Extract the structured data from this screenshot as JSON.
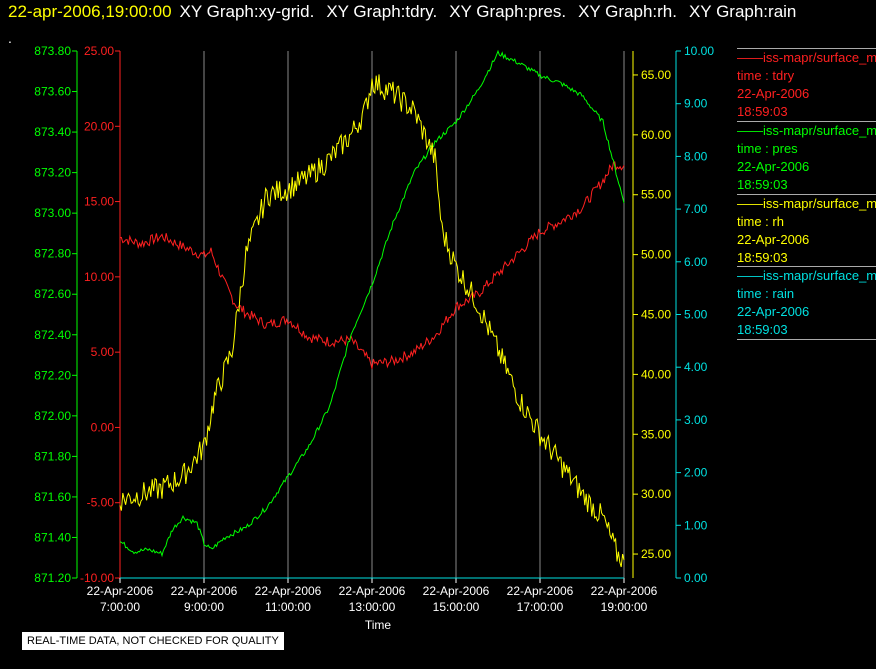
{
  "header": {
    "timestamp": "22-apr-2006,19:00:00",
    "graph_titles": [
      "XY Graph:xy-grid.",
      "XY Graph:tdry.",
      "XY Graph:pres.",
      "XY Graph:rh.",
      "XY Graph:rain"
    ],
    "dot": "."
  },
  "quality_notice": "REAL-TIME DATA, NOT CHECKED FOR QUALITY",
  "legend": [
    {
      "name": "——iss-mapr/surface_m",
      "var": "time : tdry",
      "date": "22-Apr-2006",
      "time": "18:59:03",
      "color": "#ff2020"
    },
    {
      "name": "——iss-mapr/surface_m",
      "var": "time : pres",
      "date": "22-Apr-2006",
      "time": "18:59:03",
      "color": "#00ff00"
    },
    {
      "name": "——iss-mapr/surface_m",
      "var": "time : rh",
      "date": "22-Apr-2006",
      "time": "18:59:03",
      "color": "#ffff00"
    },
    {
      "name": "——iss-mapr/surface_m",
      "var": "time : rain",
      "date": "22-Apr-2006",
      "time": "18:59:03",
      "color": "#00e0e0"
    }
  ],
  "chart_data": {
    "type": "line",
    "xlabel": "Time",
    "x_ticks": [
      {
        "date": "22-Apr-2006",
        "time": "7:00:00"
      },
      {
        "date": "22-Apr-2006",
        "time": "9:00:00"
      },
      {
        "date": "22-Apr-2006",
        "time": "11:00:00"
      },
      {
        "date": "22-Apr-2006",
        "time": "13:00:00"
      },
      {
        "date": "22-Apr-2006",
        "time": "15:00:00"
      },
      {
        "date": "22-Apr-2006",
        "time": "17:00:00"
      },
      {
        "date": "22-Apr-2006",
        "time": "19:00:00"
      }
    ],
    "xlim": [
      "22-Apr-2006 07:00",
      "22-Apr-2006 19:00"
    ],
    "grid": "vertical",
    "axes": [
      {
        "id": "tdry",
        "color": "#ff2020",
        "ylim": [
          -10,
          25
        ],
        "ticks": [
          "-10.00",
          "-5.00",
          "0.00",
          "5.00",
          "10.00",
          "15.00",
          "20.00",
          "25.00"
        ]
      },
      {
        "id": "pres",
        "color": "#00ff00",
        "ylim": [
          871.2,
          873.8
        ],
        "ticks": [
          "871.20",
          "871.40",
          "871.60",
          "871.80",
          "872.00",
          "872.20",
          "872.40",
          "872.60",
          "872.80",
          "873.00",
          "873.20",
          "873.40",
          "873.60",
          "873.80"
        ]
      },
      {
        "id": "rh",
        "color": "#ffff00",
        "ylim": [
          23,
          67
        ],
        "ticks": [
          "25.00",
          "30.00",
          "35.00",
          "40.00",
          "45.00",
          "50.00",
          "55.00",
          "60.00",
          "65.00"
        ]
      },
      {
        "id": "rain",
        "color": "#00e0e0",
        "ylim": [
          0,
          10
        ],
        "ticks": [
          "0.00",
          "1.00",
          "2.00",
          "3.00",
          "4.00",
          "5.00",
          "6.00",
          "7.00",
          "8.00",
          "9.00",
          "10.00"
        ]
      }
    ],
    "series": [
      {
        "name": "time : tdry",
        "axis": "tdry",
        "color": "#ff2020",
        "x": [
          "07:00",
          "07:30",
          "08:00",
          "08:30",
          "09:00",
          "09:10",
          "09:30",
          "09:45",
          "10:00",
          "10:30",
          "11:00",
          "11:30",
          "12:00",
          "12:30",
          "13:00",
          "13:30",
          "14:00",
          "14:30",
          "15:00",
          "15:30",
          "16:00",
          "16:30",
          "17:00",
          "17:30",
          "18:00",
          "18:30",
          "18:45",
          "19:00"
        ],
        "y": [
          12.6,
          12.2,
          12.7,
          12.0,
          11.4,
          11.7,
          9.5,
          8.2,
          7.6,
          6.8,
          7.2,
          6.0,
          5.7,
          5.8,
          4.2,
          4.4,
          5.0,
          6.1,
          8.0,
          8.8,
          10.2,
          11.6,
          13.0,
          13.7,
          14.6,
          16.4,
          17.5,
          17.4
        ]
      },
      {
        "name": "time : pres",
        "axis": "pres",
        "color": "#00ff00",
        "x": [
          "07:00",
          "07:20",
          "07:40",
          "08:00",
          "08:15",
          "08:30",
          "08:50",
          "09:00",
          "09:10",
          "09:30",
          "10:00",
          "10:30",
          "11:00",
          "11:30",
          "12:00",
          "12:30",
          "13:00",
          "13:30",
          "14:00",
          "14:30",
          "15:00",
          "15:30",
          "16:00",
          "16:30",
          "17:00",
          "17:30",
          "18:00",
          "18:30",
          "18:45",
          "19:00"
        ],
        "y": [
          871.38,
          871.33,
          871.34,
          871.32,
          871.44,
          871.5,
          871.47,
          871.37,
          871.34,
          871.4,
          871.45,
          871.55,
          871.7,
          871.85,
          872.05,
          872.4,
          872.65,
          872.95,
          873.2,
          873.35,
          873.45,
          873.6,
          873.79,
          873.74,
          873.68,
          873.64,
          873.58,
          873.45,
          873.25,
          873.05
        ]
      },
      {
        "name": "time : rh",
        "axis": "rh",
        "color": "#ffff00",
        "x": [
          "07:00",
          "07:30",
          "08:00",
          "08:30",
          "09:00",
          "09:15",
          "09:40",
          "10:00",
          "10:30",
          "11:00",
          "11:30",
          "12:00",
          "12:30",
          "12:50",
          "13:00",
          "13:30",
          "14:00",
          "14:30",
          "14:40",
          "15:00",
          "15:30",
          "16:00",
          "16:30",
          "17:00",
          "17:30",
          "18:00",
          "18:30",
          "18:50",
          "19:00"
        ],
        "y": [
          29.5,
          30.0,
          30.5,
          31.5,
          34.0,
          38.0,
          42.0,
          50.0,
          55.0,
          55.5,
          56.5,
          58.0,
          60.0,
          62.0,
          64.5,
          63.5,
          62.0,
          58.0,
          52.0,
          49.0,
          46.0,
          42.0,
          38.0,
          35.0,
          32.5,
          30.0,
          28.0,
          25.0,
          24.5
        ]
      },
      {
        "name": "time : rain",
        "axis": "rain",
        "color": "#00e0e0",
        "x": [
          "07:00",
          "19:00"
        ],
        "y": [
          0.0,
          0.0
        ]
      }
    ]
  }
}
